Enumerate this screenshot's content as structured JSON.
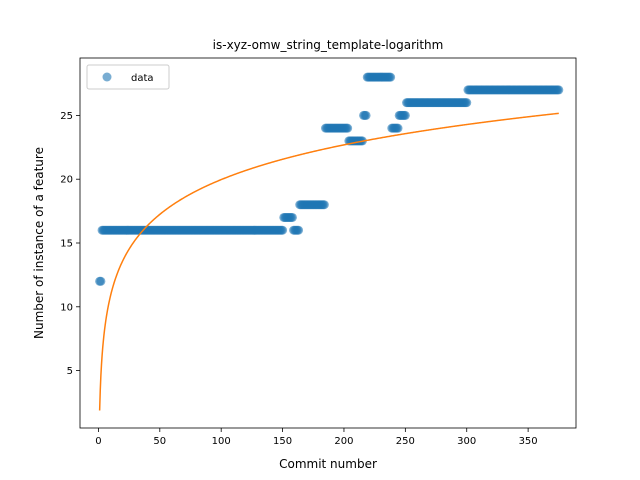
{
  "chart_data": {
    "type": "scatter",
    "title": "is-xyz-omw_string_template-logarithm",
    "xlabel": "Commit number",
    "ylabel": "Number of instance of a feature",
    "xlim": [
      -15,
      389
    ],
    "ylim": [
      0.5,
      29.5
    ],
    "xticks": [
      0,
      50,
      100,
      150,
      200,
      250,
      300,
      350
    ],
    "yticks": [
      5,
      10,
      15,
      20,
      25
    ],
    "grid": false,
    "legend": {
      "position": "upper-left",
      "entries": [
        "data"
      ]
    },
    "colors": {
      "data": "#1f77b4",
      "fit": "#ff7f0e"
    },
    "series": [
      {
        "name": "data",
        "kind": "scatter",
        "segments": [
          {
            "x_start": 1,
            "x_end": 2,
            "y": 12
          },
          {
            "x_start": 3,
            "x_end": 150,
            "y": 16
          },
          {
            "x_start": 151,
            "x_end": 158,
            "y": 17
          },
          {
            "x_start": 159,
            "x_end": 163,
            "y": 16
          },
          {
            "x_start": 164,
            "x_end": 184,
            "y": 18
          },
          {
            "x_start": 185,
            "x_end": 203,
            "y": 24
          },
          {
            "x_start": 204,
            "x_end": 215,
            "y": 23
          },
          {
            "x_start": 216,
            "x_end": 218,
            "y": 25
          },
          {
            "x_start": 219,
            "x_end": 238,
            "y": 28
          },
          {
            "x_start": 239,
            "x_end": 244,
            "y": 24
          },
          {
            "x_start": 245,
            "x_end": 250,
            "y": 25
          },
          {
            "x_start": 251,
            "x_end": 300,
            "y": 26
          },
          {
            "x_start": 301,
            "x_end": 375,
            "y": 27
          }
        ]
      },
      {
        "name": "fit",
        "kind": "line",
        "model": "logarithmic",
        "a": 1.87,
        "b": 3.93,
        "x_start": 1,
        "x_end": 375
      }
    ]
  }
}
